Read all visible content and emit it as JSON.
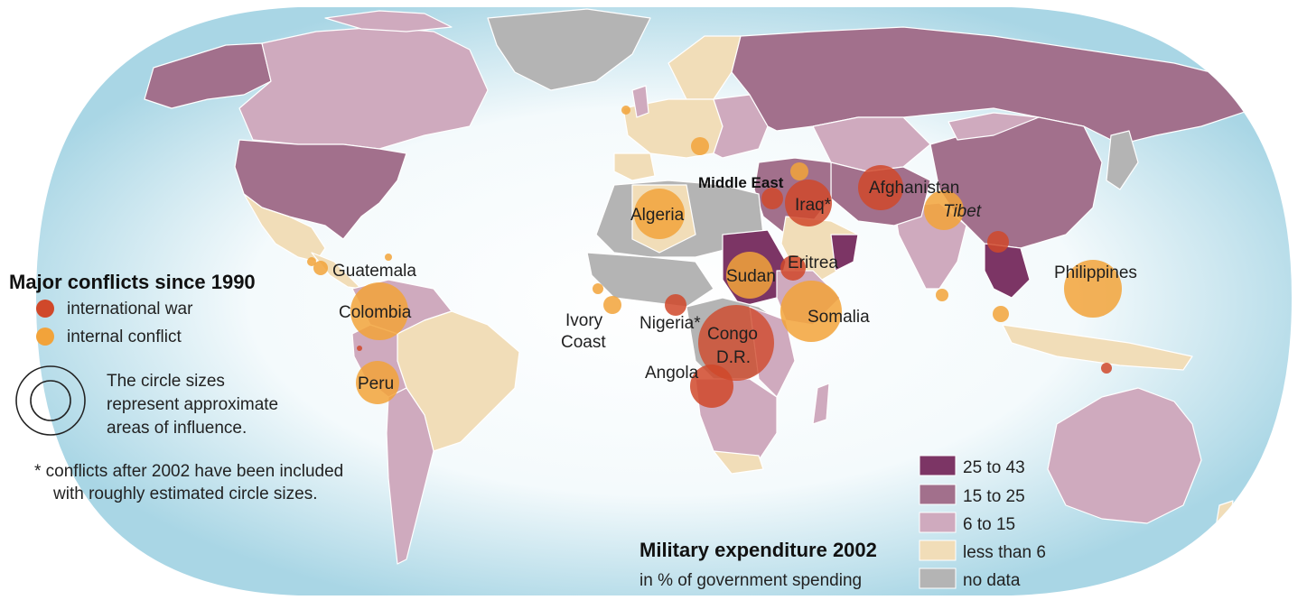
{
  "colors": {
    "ocean_light": "#ffffff",
    "ocean_dark": "#a9d6e5",
    "cat_25_43": "#7c3565",
    "cat_15_25": "#a2708c",
    "cat_6_15": "#cfaabe",
    "cat_lt6": "#f1ddb8",
    "no_data": "#b4b4b4",
    "international_war": "#d0482a",
    "internal_conflict": "#f2a33a"
  },
  "conflict_legend": {
    "title": "Major conflicts since 1990",
    "international": "international war",
    "internal": "internal conflict",
    "circle_note_1": "The circle sizes",
    "circle_note_2": "represent approximate",
    "circle_note_3": "areas of influence.",
    "footnote_1": "* conflicts after 2002 have been included",
    "footnote_2": "with roughly estimated circle sizes."
  },
  "expenditure_legend": {
    "title": "Military expenditure 2002",
    "subtitle": "in % of government spending",
    "items": [
      {
        "label": "25 to 43",
        "color_key": "cat_25_43"
      },
      {
        "label": "15 to 25",
        "color_key": "cat_15_25"
      },
      {
        "label": "6 to 15",
        "color_key": "cat_6_15"
      },
      {
        "label": "less than 6",
        "color_key": "cat_lt6"
      },
      {
        "label": "no data",
        "color_key": "no_data"
      }
    ]
  },
  "labels": {
    "guatemala": "Guatemala",
    "colombia": "Colombia",
    "peru": "Peru",
    "algeria": "Algeria",
    "middle_east": "Middle East",
    "iraq": "Iraq*",
    "afghanistan": "Afghanistan",
    "tibet": "Tibet",
    "eritrea": "Eritrea",
    "sudan": "Sudan",
    "somalia": "Somalia",
    "ivory_1": "Ivory",
    "ivory_2": "Coast",
    "nigeria": "Nigeria*",
    "congo_1": "Congo",
    "congo_2": "D.R.",
    "angola": "Angola",
    "philippines": "Philippines"
  },
  "conflicts": [
    {
      "name": "Colombia",
      "type": "internal",
      "size": "large"
    },
    {
      "name": "Peru",
      "type": "internal",
      "size": "medium"
    },
    {
      "name": "Guatemala",
      "type": "internal",
      "size": "small"
    },
    {
      "name": "Algeria",
      "type": "internal",
      "size": "medium"
    },
    {
      "name": "Middle East",
      "type": "international",
      "size": "small"
    },
    {
      "name": "Iraq",
      "type": "international",
      "size": "medium"
    },
    {
      "name": "Afghanistan",
      "type": "international",
      "size": "medium"
    },
    {
      "name": "Tibet",
      "type": "internal",
      "size": "medium"
    },
    {
      "name": "Eritrea",
      "type": "international",
      "size": "small"
    },
    {
      "name": "Sudan",
      "type": "internal",
      "size": "medium"
    },
    {
      "name": "Somalia",
      "type": "internal",
      "size": "large"
    },
    {
      "name": "Ivory Coast",
      "type": "internal",
      "size": "small"
    },
    {
      "name": "Nigeria",
      "type": "international",
      "size": "small"
    },
    {
      "name": "Congo D.R.",
      "type": "international",
      "size": "large"
    },
    {
      "name": "Angola",
      "type": "international",
      "size": "medium"
    },
    {
      "name": "Philippines",
      "type": "internal",
      "size": "large"
    }
  ]
}
